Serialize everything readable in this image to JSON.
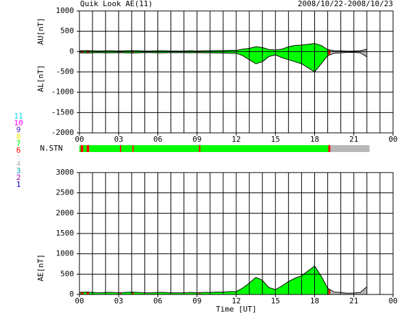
{
  "title": "Quik Look AE(11)",
  "date_range": "2008/10/22-2008/10/23",
  "x_label": "Time [UT]",
  "stations": {
    "label": "N.STN",
    "xlim": [
      0,
      24
    ],
    "segments": [
      {
        "start": 0,
        "end": 0.1,
        "n": 7
      },
      {
        "start": 0.1,
        "end": 0.3,
        "n": 6
      },
      {
        "start": 0.3,
        "end": 0.55,
        "n": 7
      },
      {
        "start": 0.55,
        "end": 0.75,
        "n": 6
      },
      {
        "start": 0.75,
        "end": 3.1,
        "n": 7
      },
      {
        "start": 3.1,
        "end": 3.2,
        "n": 6
      },
      {
        "start": 3.2,
        "end": 4.05,
        "n": 7
      },
      {
        "start": 4.05,
        "end": 4.15,
        "n": 6
      },
      {
        "start": 4.15,
        "end": 9.15,
        "n": 7
      },
      {
        "start": 9.15,
        "end": 9.25,
        "n": 6
      },
      {
        "start": 9.25,
        "end": 19.05,
        "n": 7
      },
      {
        "start": 19.05,
        "end": 19.2,
        "n": 6
      },
      {
        "start": 19.2,
        "end": 22.2,
        "n": 4
      }
    ]
  },
  "legend": [
    {
      "label": "11",
      "color": "#00d8e8"
    },
    {
      "label": "10",
      "color": "#ff00ff"
    },
    {
      "label": "9",
      "color": "#4020c0"
    },
    {
      "label": "8",
      "color": "#e8e800"
    },
    {
      "label": "7",
      "color": "#00ff00"
    },
    {
      "label": "6",
      "color": "#ff0000"
    },
    {
      "label": "5",
      "color": "#e8e8e8"
    },
    {
      "label": "4",
      "color": "#b8b8b8"
    },
    {
      "label": "3",
      "color": "#00a0a0"
    },
    {
      "label": "2",
      "color": "#a000a0"
    },
    {
      "label": "1",
      "color": "#0000c0"
    }
  ],
  "chart_data": [
    {
      "type": "band",
      "grid": true,
      "x": [
        0,
        0.5,
        1,
        1.5,
        2,
        2.5,
        3,
        3.5,
        4,
        4.5,
        5,
        5.5,
        6,
        6.5,
        7,
        7.5,
        8,
        8.5,
        9,
        9.5,
        10,
        10.5,
        11,
        11.5,
        12,
        12.5,
        13,
        13.5,
        14,
        14.5,
        15,
        15.5,
        16,
        16.5,
        17,
        17.5,
        18,
        18.5,
        19,
        19.5,
        20,
        20.5,
        21,
        21.5,
        22
      ],
      "series": [
        {
          "name": "AU[nT]",
          "color": "#000000",
          "values": [
            20,
            25,
            20,
            15,
            20,
            20,
            15,
            20,
            25,
            20,
            15,
            15,
            20,
            20,
            15,
            15,
            15,
            20,
            15,
            20,
            20,
            25,
            25,
            30,
            30,
            60,
            80,
            120,
            100,
            50,
            40,
            60,
            120,
            150,
            160,
            180,
            200,
            150,
            50,
            20,
            20,
            10,
            15,
            20,
            60
          ]
        },
        {
          "name": "AL[nT]",
          "color": "#000000",
          "values": [
            -30,
            -35,
            -30,
            -25,
            -30,
            -30,
            -25,
            -30,
            -35,
            -30,
            -25,
            -25,
            -30,
            -30,
            -25,
            -25,
            -25,
            -30,
            -25,
            -30,
            -30,
            -35,
            -35,
            -40,
            -40,
            -100,
            -200,
            -300,
            -250,
            -120,
            -80,
            -150,
            -200,
            -250,
            -300,
            -400,
            -500,
            -300,
            -100,
            -40,
            -30,
            -20,
            -20,
            -30,
            -130
          ]
        }
      ],
      "xlim": [
        0,
        24
      ],
      "xticks": [
        {
          "value": 0,
          "label": "00"
        },
        {
          "value": 3,
          "label": "03"
        },
        {
          "value": 6,
          "label": "06"
        },
        {
          "value": 9,
          "label": "09"
        },
        12,
        15,
        18,
        21,
        {
          "value": 24,
          "label": "00"
        }
      ],
      "x_minor_ticks": [
        1,
        2,
        4,
        5,
        7,
        8,
        10,
        11,
        13,
        14,
        16,
        17,
        19,
        20,
        22,
        23
      ],
      "ylim": [
        -2000,
        1000
      ],
      "yticks": [
        1000,
        500,
        0,
        -500,
        -1000,
        -1500,
        -2000
      ]
    },
    {
      "type": "area",
      "grid": true,
      "x": [
        0,
        0.5,
        1,
        1.5,
        2,
        2.5,
        3,
        3.5,
        4,
        4.5,
        5,
        5.5,
        6,
        6.5,
        7,
        7.5,
        8,
        8.5,
        9,
        9.5,
        10,
        10.5,
        11,
        11.5,
        12,
        12.5,
        13,
        13.5,
        14,
        14.5,
        15,
        15.5,
        16,
        16.5,
        17,
        17.5,
        18,
        18.5,
        19,
        19.5,
        20,
        20.5,
        21,
        21.5,
        22
      ],
      "series": [
        {
          "name": "AE[nT]",
          "color": "#000000",
          "values": [
            50,
            60,
            50,
            40,
            50,
            50,
            40,
            50,
            60,
            50,
            40,
            40,
            50,
            50,
            40,
            40,
            40,
            50,
            40,
            50,
            50,
            60,
            60,
            70,
            70,
            160,
            280,
            420,
            350,
            170,
            120,
            210,
            320,
            400,
            460,
            580,
            700,
            450,
            150,
            60,
            50,
            30,
            35,
            50,
            190
          ]
        }
      ],
      "xlim": [
        0,
        24
      ],
      "xticks": [
        {
          "value": 0,
          "label": "00"
        },
        {
          "value": 3,
          "label": "03"
        },
        {
          "value": 6,
          "label": "06"
        },
        {
          "value": 9,
          "label": "09"
        },
        12,
        15,
        18,
        21,
        {
          "value": 24,
          "label": "00"
        }
      ],
      "x_minor_ticks": [
        1,
        2,
        4,
        5,
        7,
        8,
        10,
        11,
        13,
        14,
        16,
        17,
        19,
        20,
        22,
        23
      ],
      "ylim": [
        0,
        3000
      ],
      "yticks": [
        3000,
        2500,
        2000,
        1500,
        1000,
        500,
        0
      ]
    }
  ]
}
